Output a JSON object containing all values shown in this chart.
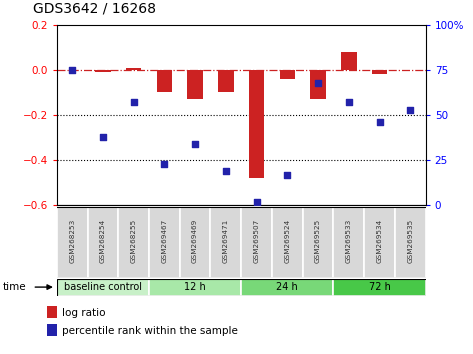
{
  "title": "GDS3642 / 16268",
  "samples": [
    "GSM268253",
    "GSM268254",
    "GSM268255",
    "GSM269467",
    "GSM269469",
    "GSM269471",
    "GSM269507",
    "GSM269524",
    "GSM269525",
    "GSM269533",
    "GSM269534",
    "GSM269535"
  ],
  "log_ratio": [
    0.0,
    -0.01,
    0.01,
    -0.1,
    -0.13,
    -0.1,
    -0.48,
    -0.04,
    -0.13,
    0.08,
    -0.02,
    0.0
  ],
  "pct_rank": [
    75,
    38,
    57,
    23,
    34,
    19,
    2,
    17,
    68,
    57,
    46,
    53
  ],
  "groups": [
    {
      "label": "baseline control",
      "start": 0,
      "end": 3,
      "color": "#c8f0c8"
    },
    {
      "label": "12 h",
      "start": 3,
      "end": 6,
      "color": "#a8e8a8"
    },
    {
      "label": "24 h",
      "start": 6,
      "end": 9,
      "color": "#78d878"
    },
    {
      "label": "72 h",
      "start": 9,
      "end": 12,
      "color": "#48c848"
    }
  ],
  "ylim_left": [
    -0.6,
    0.2
  ],
  "ylim_right": [
    0,
    100
  ],
  "bar_color": "#cc2222",
  "dot_color": "#2222aa",
  "hline_color": "#cc2222",
  "bar_width": 0.5,
  "legend_items": [
    "log ratio",
    "percentile rank within the sample"
  ]
}
